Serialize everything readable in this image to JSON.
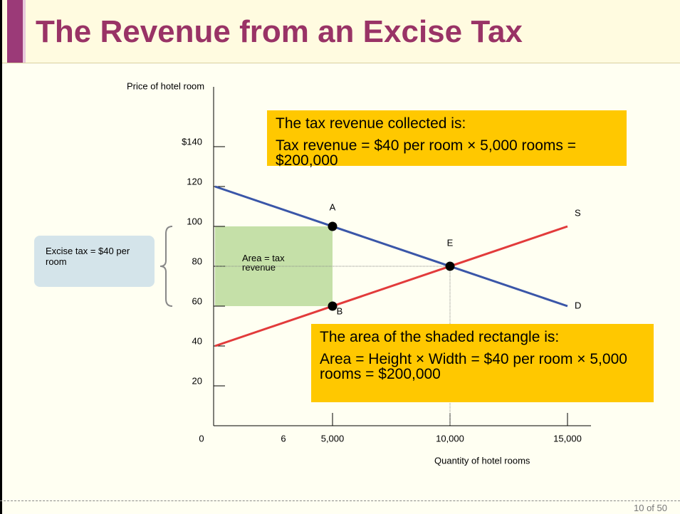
{
  "slide_title": "The Revenue from an Excise Tax",
  "page_number": "10 of 50",
  "chart_data": {
    "type": "line",
    "ylabel": "Price of hotel room",
    "xlabel": "Quantity of hotel rooms",
    "xlim": [
      0,
      16000
    ],
    "ylim": [
      0,
      170
    ],
    "xticks": [
      0,
      {
        "value": 5000,
        "label": "5,000"
      },
      {
        "value": 10000,
        "label": "10,000"
      },
      {
        "value": 15000,
        "label": "15,000"
      }
    ],
    "yticks": [
      20,
      40,
      60,
      80,
      100,
      120,
      {
        "value": 140,
        "label": "$140"
      }
    ],
    "series": [
      {
        "name": "D",
        "color": "#3a56a8",
        "x": [
          0,
          15000
        ],
        "values": [
          120,
          60
        ]
      },
      {
        "name": "S",
        "color": "#e23b3b",
        "x": [
          0,
          15000
        ],
        "values": [
          40,
          100
        ]
      }
    ],
    "points": [
      {
        "label": "A",
        "x": 5000,
        "y": 100
      },
      {
        "label": "B",
        "x": 5000,
        "y": 60
      },
      {
        "label": "E",
        "x": 10000,
        "y": 80
      }
    ],
    "shaded_area": {
      "label": "Area = tax revenue",
      "x": [
        0,
        5000
      ],
      "y": [
        60,
        100
      ],
      "color": "#c5e0a8"
    },
    "stray_label": "6",
    "callouts": [
      {
        "title": "The tax revenue collected is:",
        "body": "Tax revenue = $40 per room × 5,000 rooms = $200,000"
      },
      {
        "title": "The area of the shaded rectangle is:",
        "body": "Area = Height × Width = $40 per room × 5,000 rooms = $200,000"
      }
    ],
    "tax_note": "Excise tax = $40 per room"
  }
}
